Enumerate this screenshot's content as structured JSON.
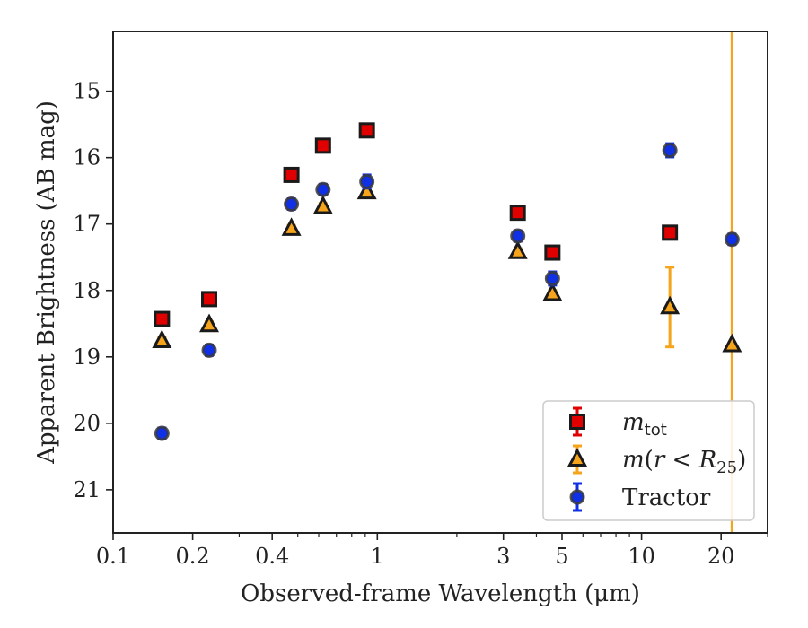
{
  "chart_data": {
    "type": "scatter",
    "xscale": "log",
    "yscale": "linear",
    "y_inverted": true,
    "xlabel": "Observed-frame Wavelength (μm)",
    "ylabel": "Apparent Brightness (AB mag)",
    "xlim": [
      0.1,
      30
    ],
    "ylim": [
      21.65,
      14.1
    ],
    "xticks": [
      {
        "value": 0.1,
        "label": "0.1"
      },
      {
        "value": 0.2,
        "label": "0.2"
      },
      {
        "value": 0.4,
        "label": "0.4"
      },
      {
        "value": 1,
        "label": "1"
      },
      {
        "value": 3,
        "label": "3"
      },
      {
        "value": 5,
        "label": "5"
      },
      {
        "value": 10,
        "label": "10"
      },
      {
        "value": 20,
        "label": "20"
      }
    ],
    "yticks": [
      {
        "value": 15,
        "label": "15"
      },
      {
        "value": 16,
        "label": "16"
      },
      {
        "value": 17,
        "label": "17"
      },
      {
        "value": 18,
        "label": "18"
      },
      {
        "value": 19,
        "label": "19"
      },
      {
        "value": 20,
        "label": "20"
      },
      {
        "value": 21,
        "label": "21"
      }
    ],
    "grid": false,
    "legend_position": "lower-right",
    "series": [
      {
        "name": "m_tot",
        "label_html": "<tspan font-style=\"italic\">m</tspan><tspan font-size=\"18\" dy=\"6\" font-family=\"DejaVu Sans, sans-serif\">tot</tspan>",
        "marker": "square",
        "face_color": "#e00000",
        "err_color": "#e00000",
        "edge_color": "#1a1a1a",
        "points": [
          {
            "x": 0.153,
            "y": 18.43,
            "err": 0.05
          },
          {
            "x": 0.231,
            "y": 18.13,
            "err": 0.05
          },
          {
            "x": 0.473,
            "y": 16.26,
            "err": 0.05
          },
          {
            "x": 0.623,
            "y": 15.82,
            "err": 0.05
          },
          {
            "x": 0.913,
            "y": 15.59,
            "err": 0.05
          },
          {
            "x": 3.4,
            "y": 16.83,
            "err": 0.05
          },
          {
            "x": 4.6,
            "y": 17.43,
            "err": 0.05
          },
          {
            "x": 12.8,
            "y": 17.13,
            "err": 0.05
          }
        ]
      },
      {
        "name": "m(r < R25)",
        "label_html": "<tspan font-style=\"italic\">m</tspan><tspan>(</tspan><tspan font-style=\"italic\">r</tspan><tspan> &lt; </tspan><tspan font-style=\"italic\">R</tspan><tspan font-size=\"18\" dy=\"6\">25</tspan><tspan dy=\"-6\">)</tspan>",
        "marker": "triangle",
        "face_color": "#f5a41b",
        "err_color": "#f5a41b",
        "edge_color": "#1a1a1a",
        "points": [
          {
            "x": 0.153,
            "y": 18.76,
            "err": 0.05
          },
          {
            "x": 0.231,
            "y": 18.52,
            "err": 0.05
          },
          {
            "x": 0.473,
            "y": 17.07,
            "err": 0.05
          },
          {
            "x": 0.623,
            "y": 16.74,
            "err": 0.05
          },
          {
            "x": 0.913,
            "y": 16.52,
            "err": 0.05
          },
          {
            "x": 3.4,
            "y": 17.42,
            "err": 0.05
          },
          {
            "x": 4.6,
            "y": 18.05,
            "err": 0.05
          },
          {
            "x": 12.8,
            "y": 18.25,
            "err": 0.6
          },
          {
            "x": 22.0,
            "y": 18.82,
            "err": 20
          }
        ]
      },
      {
        "name": "Tractor",
        "label_html": "<tspan>Tractor</tspan>",
        "marker": "circle",
        "face_color": "#1030e6",
        "err_color": "#1030e6",
        "edge_color": "#3a3a3a",
        "points": [
          {
            "x": 0.153,
            "y": 20.15,
            "err": 0.08
          },
          {
            "x": 0.231,
            "y": 18.9,
            "err": 0.08
          },
          {
            "x": 0.473,
            "y": 16.7,
            "err": 0.08
          },
          {
            "x": 0.623,
            "y": 16.48,
            "err": 0.08
          },
          {
            "x": 0.913,
            "y": 16.36,
            "err": 0.1
          },
          {
            "x": 3.4,
            "y": 17.18,
            "err": 0.08
          },
          {
            "x": 4.6,
            "y": 17.82,
            "err": 0.1
          },
          {
            "x": 12.8,
            "y": 15.89,
            "err": 0.1
          },
          {
            "x": 22.0,
            "y": 17.23,
            "err": 0.08
          }
        ]
      }
    ]
  }
}
